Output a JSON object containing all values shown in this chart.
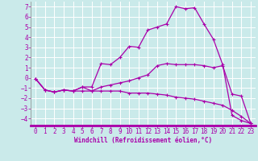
{
  "xlabel": "Windchill (Refroidissement éolien,°C)",
  "background_color": "#caeaea",
  "grid_color": "#ffffff",
  "line_color": "#aa00aa",
  "axis_bar_color": "#aa00aa",
  "x_ticks": [
    0,
    1,
    2,
    3,
    4,
    5,
    6,
    7,
    8,
    9,
    10,
    11,
    12,
    13,
    14,
    15,
    16,
    17,
    18,
    19,
    20,
    21,
    22,
    23
  ],
  "y_ticks": [
    -4,
    -3,
    -2,
    -1,
    0,
    1,
    2,
    3,
    4,
    5,
    6,
    7
  ],
  "xlim": [
    -0.5,
    23.5
  ],
  "ylim": [
    -4.7,
    7.5
  ],
  "line1_x": [
    0,
    1,
    2,
    3,
    4,
    5,
    6,
    7,
    8,
    9,
    10,
    11,
    12,
    13,
    14,
    15,
    16,
    17,
    18,
    19,
    20,
    21,
    22,
    23
  ],
  "line1_y": [
    -0.1,
    -1.2,
    -1.4,
    -1.2,
    -1.3,
    -0.9,
    -1.3,
    -0.9,
    -0.7,
    -0.5,
    -0.3,
    0.0,
    0.3,
    1.2,
    1.4,
    1.3,
    1.3,
    1.3,
    1.2,
    1.0,
    1.2,
    -1.6,
    -1.8,
    -4.5
  ],
  "line2_x": [
    0,
    1,
    2,
    3,
    4,
    5,
    6,
    7,
    8,
    9,
    10,
    11,
    12,
    13,
    14,
    15,
    16,
    17,
    18,
    19,
    20,
    21,
    22,
    23
  ],
  "line2_y": [
    -0.1,
    -1.2,
    -1.4,
    -1.2,
    -1.3,
    -0.9,
    -0.9,
    1.4,
    1.3,
    2.0,
    3.1,
    3.0,
    4.7,
    5.0,
    5.3,
    7.0,
    6.8,
    6.9,
    5.3,
    3.8,
    1.3,
    -3.7,
    -4.2,
    -4.5
  ],
  "line3_x": [
    0,
    1,
    2,
    3,
    4,
    5,
    6,
    7,
    8,
    9,
    10,
    11,
    12,
    13,
    14,
    15,
    16,
    17,
    18,
    19,
    20,
    21,
    22,
    23
  ],
  "line3_y": [
    -0.1,
    -1.2,
    -1.4,
    -1.2,
    -1.3,
    -1.3,
    -1.3,
    -1.3,
    -1.3,
    -1.3,
    -1.5,
    -1.5,
    -1.5,
    -1.6,
    -1.7,
    -1.9,
    -2.0,
    -2.1,
    -2.3,
    -2.5,
    -2.7,
    -3.2,
    -3.8,
    -4.5
  ],
  "tick_fontsize": 5.5,
  "xlabel_fontsize": 5.5
}
